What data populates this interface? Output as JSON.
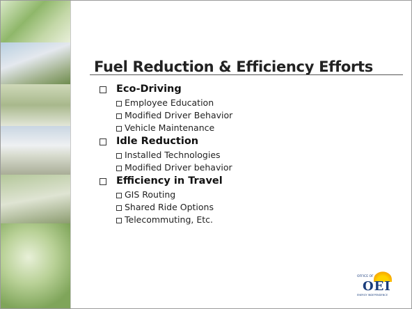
{
  "title": "Fuel Reduction & Efficiency Efforts",
  "sections": [
    {
      "heading": "Eco-Driving",
      "items": [
        "Employee Education",
        "Modified Driver Behavior",
        "Vehicle Maintenance"
      ]
    },
    {
      "heading": "Idle Reduction",
      "items": [
        "Installed Technologies",
        "Modified Driver behavior"
      ]
    },
    {
      "heading": "Efficiency in Travel",
      "items": [
        "GIS Routing",
        "Shared Ride Options",
        "Telecommuting, Etc."
      ]
    }
  ],
  "logo": {
    "top": "OFFICE OF",
    "main": "OEI",
    "bottom": "ENERGY INDEPENDENCE"
  }
}
